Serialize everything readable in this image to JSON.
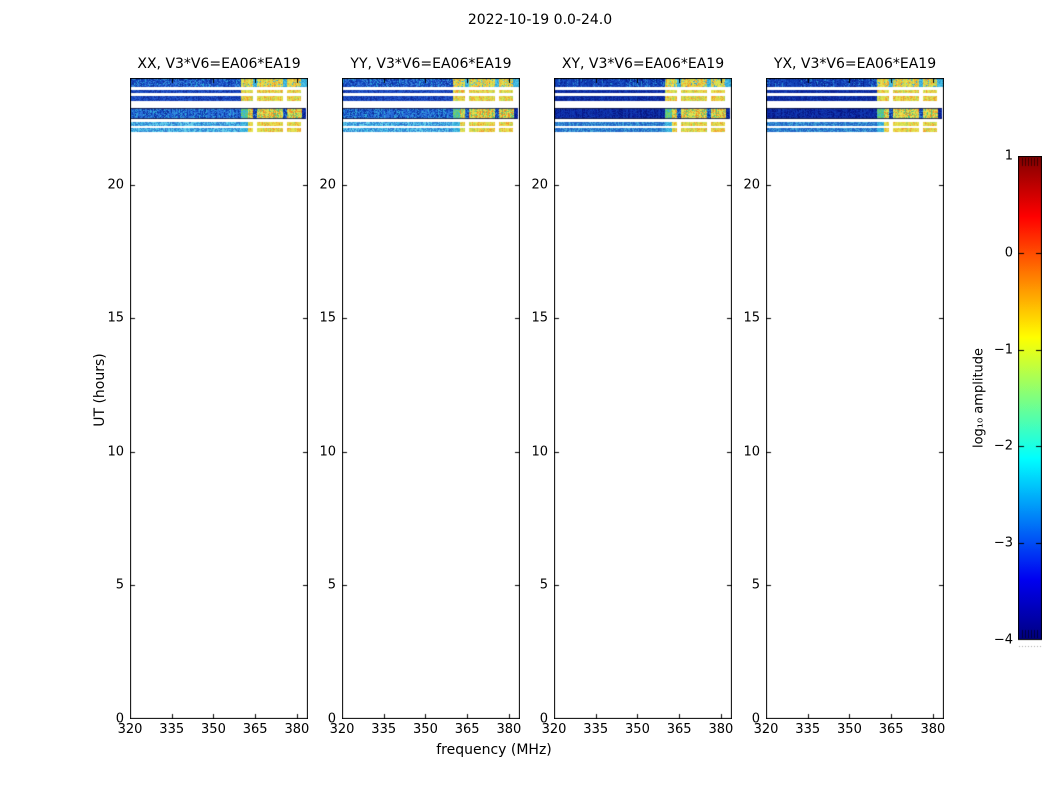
{
  "figure": {
    "title": "2022-10-19 0.0-24.0"
  },
  "chart_data": {
    "type": "heatmap",
    "title": "2022-10-19 0.0-24.0",
    "xlabel": "frequency (MHz)",
    "ylabel": "UT (hours)",
    "xlim": [
      320,
      384
    ],
    "ylim": [
      0,
      24
    ],
    "xticks": [
      320,
      335,
      350,
      365,
      380
    ],
    "yticks": [
      0,
      5,
      10,
      15,
      20
    ],
    "grid": false,
    "panels": [
      {
        "id": "XX",
        "title": "XX, V3*V6=EA06*EA19",
        "variant": "bright"
      },
      {
        "id": "YY",
        "title": "YY, V3*V6=EA06*EA19",
        "variant": "bright"
      },
      {
        "id": "XY",
        "title": "XY, V3*V6=EA06*EA19",
        "variant": "dark"
      },
      {
        "id": "YX",
        "title": "YX, V3*V6=EA06*EA19",
        "variant": "dark"
      }
    ],
    "observation": {
      "ut_window": [
        21.96,
        24.0
      ],
      "bands": [
        {
          "kind": "A",
          "ut": [
            23.66,
            24.0
          ],
          "amp_low_freq_parallel": -2.7,
          "amp_low_freq_cross": -3.1,
          "amp_high_freq": -1.1
        },
        {
          "kind": "thin",
          "ut": [
            23.42,
            23.55
          ],
          "amp_low_freq_parallel": -2.9,
          "amp_low_freq_cross": -3.4,
          "amp_high_freq": -1.0
        },
        {
          "kind": "thin",
          "ut": [
            23.14,
            23.33
          ],
          "amp_low_freq_parallel": -2.9,
          "amp_low_freq_cross": -3.4,
          "amp_high_freq": -1.0
        },
        {
          "kind": "D",
          "ut": [
            22.48,
            22.86
          ],
          "amp_low_freq_parallel": -2.6,
          "amp_low_freq_cross": -3.7,
          "amp_high_freq": -0.9
        },
        {
          "kind": "thinL",
          "ut": [
            22.2,
            22.37
          ],
          "amp_low_freq_parallel": -2.3,
          "amp_low_freq_cross": -2.8,
          "amp_high_freq": -1.0
        },
        {
          "kind": "thinL",
          "ut": [
            21.96,
            22.11
          ],
          "amp_low_freq_parallel": -2.3,
          "amp_low_freq_cross": -2.8,
          "amp_high_freq": -1.0
        }
      ],
      "freq_features": {
        "yellow_start": 359.6,
        "transition_end": 362.3,
        "gaps": [
          [
            364.2,
            365.4
          ],
          [
            374.8,
            376.1
          ]
        ],
        "thin_end": 381.3,
        "band_A_end": 384.0,
        "band_D_end": 383.0,
        "dark_tail_start": 381.8
      }
    },
    "colorbar": {
      "label": "log₁₀ amplitude",
      "ticks": [
        1,
        0,
        -1,
        -2,
        -3,
        -4
      ],
      "vmin": -4,
      "vmax": 1,
      "colormap": "jet",
      "jet_stops": [
        [
          0.0,
          "#000080"
        ],
        [
          0.125,
          "#0000f1"
        ],
        [
          0.375,
          "#00ffff"
        ],
        [
          0.625,
          "#ffff00"
        ],
        [
          0.875,
          "#ff0000"
        ],
        [
          1.0,
          "#800000"
        ]
      ]
    }
  },
  "palettes": {
    "bright": {
      "A": [
        "#1e57ca",
        "#2a69d5",
        "#0f3eb2",
        "#2da4da",
        "#1648be",
        "#0d2f9c",
        "#3b82dd",
        "#1243b8"
      ],
      "thin": [
        "#1a46be",
        "#1238ae",
        "#2659cc",
        "#0e2c9e",
        "#1c50c4"
      ],
      "D": [
        "#2062d2",
        "#2f7cdd",
        "#1244b6",
        "#33a8dd",
        "#0d309e",
        "#2a6ed8"
      ],
      "thinL": [
        "#3f9fdd",
        "#57c4e8",
        "#2f84d4",
        "#6fd2ec",
        "#35b2e2",
        "#2a72cc"
      ]
    },
    "dark": {
      "A": [
        "#1243b8",
        "#0c30a6",
        "#1e55c8",
        "#2a8ed2",
        "#081f8e",
        "#1a4cc0",
        "#0e38ac"
      ],
      "thin": [
        "#0c2ca2",
        "#081f8e",
        "#143eb2",
        "#0a26a0"
      ],
      "D": [
        "#0a22a0",
        "#061682",
        "#0f32ae",
        "#0c2a9a",
        "#123cb4"
      ],
      "thinL": [
        "#2f8ad0",
        "#1e5ec2",
        "#45a8da",
        "#2570cc"
      ]
    },
    "yellow": [
      "#dde14f",
      "#e9e554",
      "#cfdf51",
      "#f2ca3d",
      "#f09a2c",
      "#e6d44a",
      "#aad85e",
      "#f0b335"
    ],
    "yellowD": [
      "#dde14f",
      "#f0a02a",
      "#8ed06a",
      "#e9e554",
      "#f2ca3d",
      "#56c47c",
      "#f08828",
      "#cfdf51"
    ],
    "greenTrans": [
      "#58c87c",
      "#3ab4de",
      "#7ed060",
      "#4cc4a0"
    ],
    "cyanStripe": [
      "#3ab4de",
      "#2d9fd4",
      "#52c4e6"
    ],
    "blueStripeD": [
      "#1a50c0",
      "#0c2fa0",
      "#2f8ad0"
    ],
    "bandEdge": "#0b1038"
  }
}
